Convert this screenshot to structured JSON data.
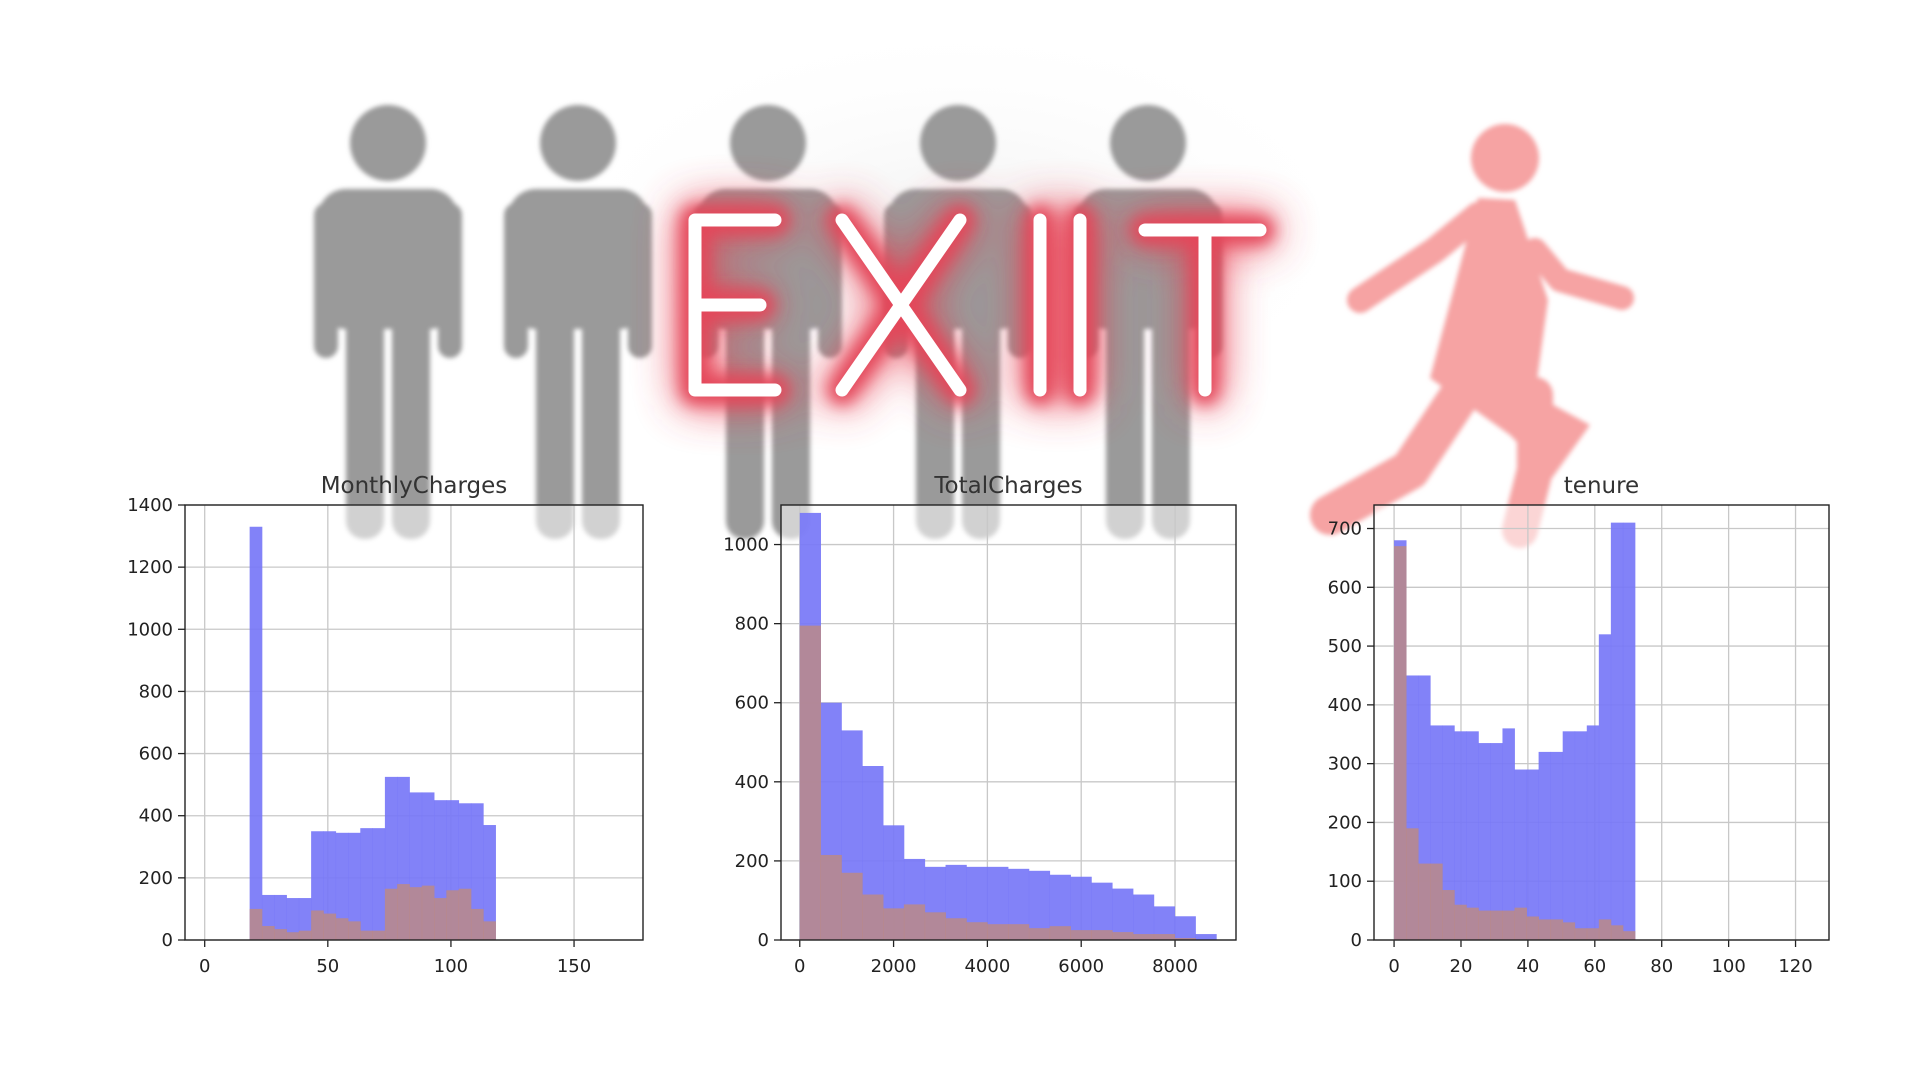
{
  "banner": {
    "text": "EXIT"
  },
  "illustration": {
    "people_icons": [
      "person-icon",
      "person-icon",
      "person-icon",
      "person-icon",
      "person-icon"
    ],
    "walking_icon": "walking-person-icon",
    "colors": {
      "person": "#9a9a9a",
      "walker": "#f6a3a3",
      "glow": "#e83a4e",
      "exit_stroke": "#ffffff"
    }
  },
  "colors": {
    "series_a": "#7777f7",
    "series_b": "#c08a7e",
    "grid": "#c8c8c8",
    "axes": "#222222"
  },
  "chart_data": [
    {
      "type": "bar",
      "title": "MonthlyCharges",
      "xlim": [
        -8,
        178
      ],
      "ylim": [
        0,
        1400
      ],
      "xticks": [
        0,
        50,
        100,
        150
      ],
      "yticks": [
        0,
        200,
        400,
        600,
        800,
        1000,
        1200,
        1400
      ],
      "grid": true,
      "bin_edges": [
        18.25,
        23.24,
        28.24,
        33.23,
        38.22,
        43.22,
        48.21,
        53.2,
        58.2,
        63.19,
        68.18,
        73.18,
        78.17,
        83.16,
        88.16,
        93.15,
        98.14,
        103.14,
        108.13,
        113.12,
        118.12
      ],
      "series": [
        {
          "name": "",
          "values": [
            1330,
            145,
            145,
            135,
            135,
            350,
            350,
            345,
            345,
            360,
            360,
            525,
            525,
            475,
            475,
            450,
            450,
            440,
            440,
            370
          ]
        },
        {
          "name": "",
          "values": [
            100,
            45,
            35,
            25,
            30,
            95,
            85,
            70,
            60,
            30,
            30,
            165,
            180,
            170,
            175,
            135,
            160,
            165,
            100,
            60
          ]
        }
      ]
    },
    {
      "type": "bar",
      "title": "TotalCharges",
      "xlim": [
        -400,
        9300
      ],
      "ylim": [
        0,
        1100
      ],
      "xticks": [
        0,
        2000,
        4000,
        6000,
        8000
      ],
      "yticks": [
        0,
        200,
        400,
        600,
        800,
        1000
      ],
      "grid": true,
      "bin_edges": [
        0,
        444,
        888,
        1332,
        1776,
        2220,
        2664,
        3108,
        3552,
        3996,
        4440,
        4884,
        5328,
        5772,
        6216,
        6660,
        7104,
        7548,
        7992,
        8436,
        8880
      ],
      "series": [
        {
          "name": "",
          "values": [
            1080,
            600,
            530,
            440,
            290,
            205,
            185,
            190,
            185,
            185,
            180,
            175,
            165,
            160,
            145,
            130,
            115,
            85,
            60,
            15
          ]
        },
        {
          "name": "",
          "values": [
            795,
            215,
            170,
            115,
            80,
            90,
            70,
            55,
            45,
            40,
            40,
            30,
            35,
            25,
            25,
            20,
            15,
            15,
            5,
            0
          ]
        }
      ]
    },
    {
      "type": "bar",
      "title": "tenure",
      "xlim": [
        -6,
        130
      ],
      "ylim": [
        0,
        740
      ],
      "xticks": [
        0,
        20,
        40,
        60,
        80,
        100,
        120
      ],
      "yticks": [
        0,
        100,
        200,
        300,
        400,
        500,
        600,
        700
      ],
      "grid": true,
      "bin_edges": [
        0,
        3.6,
        7.2,
        10.8,
        14.4,
        18,
        21.6,
        25.2,
        28.8,
        32.4,
        36,
        39.6,
        43.2,
        46.8,
        50.4,
        54,
        57.6,
        61.2,
        64.8,
        68.4,
        72
      ],
      "series": [
        {
          "name": "",
          "values": [
            680,
            450,
            450,
            365,
            365,
            355,
            355,
            335,
            335,
            360,
            290,
            290,
            320,
            320,
            355,
            355,
            365,
            520,
            710,
            710
          ]
        },
        {
          "name": "",
          "values": [
            670,
            190,
            130,
            130,
            85,
            60,
            55,
            50,
            50,
            50,
            55,
            40,
            35,
            35,
            30,
            20,
            20,
            35,
            25,
            15
          ]
        }
      ]
    }
  ]
}
